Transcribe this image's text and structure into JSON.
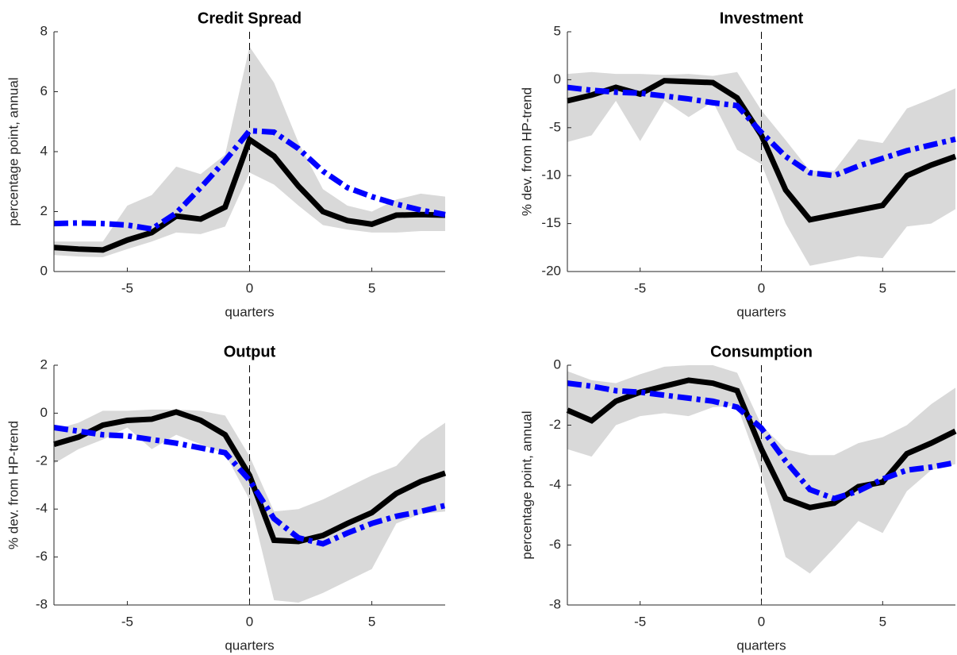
{
  "chart_data": [
    {
      "type": "line",
      "title": "Credit Spread",
      "xlabel": "quarters",
      "ylabel": "percentage point, annual",
      "x": [
        -8,
        -7,
        -6,
        -5,
        -4,
        -3,
        -2,
        -1,
        0,
        1,
        2,
        3,
        4,
        5,
        6,
        7,
        8
      ],
      "xlim": [
        -8,
        8
      ],
      "xticks": [
        -5,
        0,
        5
      ],
      "ylim": [
        0,
        8
      ],
      "yticks": [
        0,
        2,
        4,
        6,
        8
      ],
      "vline": 0,
      "band": {
        "color": "#d9d9d9",
        "lower": [
          0.55,
          0.5,
          0.48,
          0.75,
          1.0,
          1.3,
          1.25,
          1.5,
          3.3,
          2.9,
          2.2,
          1.55,
          1.4,
          1.3,
          1.3,
          1.35,
          1.35
        ],
        "upper": [
          1.0,
          1.0,
          1.0,
          2.2,
          2.55,
          3.5,
          3.25,
          3.9,
          7.5,
          6.3,
          4.3,
          2.75,
          2.2,
          2.0,
          2.4,
          2.6,
          2.5
        ]
      },
      "series": [
        {
          "color": "#000000",
          "line_style": "solid",
          "values": [
            0.8,
            0.75,
            0.72,
            1.05,
            1.3,
            1.85,
            1.75,
            2.15,
            4.4,
            3.85,
            2.85,
            2.0,
            1.7,
            1.58,
            1.88,
            1.9,
            1.88
          ]
        },
        {
          "color": "#0000ff",
          "line_style": "dashdot",
          "values": [
            1.6,
            1.62,
            1.6,
            1.55,
            1.42,
            1.95,
            2.8,
            3.7,
            4.7,
            4.65,
            4.1,
            3.35,
            2.8,
            2.5,
            2.25,
            2.05,
            1.9
          ]
        }
      ]
    },
    {
      "type": "line",
      "title": "Investment",
      "xlabel": "quarters",
      "ylabel": "% dev. from HP-trend",
      "x": [
        -8,
        -7,
        -6,
        -5,
        -4,
        -3,
        -2,
        -1,
        0,
        1,
        2,
        3,
        4,
        5,
        6,
        7,
        8
      ],
      "xlim": [
        -8,
        8
      ],
      "xticks": [
        -5,
        0,
        5
      ],
      "ylim": [
        -20,
        5
      ],
      "yticks": [
        -20,
        -15,
        -10,
        -5,
        0,
        5
      ],
      "vline": 0,
      "band": {
        "color": "#d9d9d9",
        "lower": [
          -6.5,
          -5.8,
          -2.2,
          -6.4,
          -2.2,
          -3.9,
          -2.3,
          -7.3,
          -8.8,
          -15,
          -19.4,
          -18.9,
          -18.4,
          -18.6,
          -15.3,
          -15,
          -13.5
        ],
        "upper": [
          0.6,
          0.8,
          0.6,
          0.6,
          0.5,
          0.6,
          0.4,
          0.8,
          -3.2,
          -6.3,
          -9.5,
          -9.5,
          -6.2,
          -6.6,
          -3,
          -2,
          -0.9
        ]
      },
      "series": [
        {
          "color": "#000000",
          "line_style": "solid",
          "values": [
            -2.2,
            -1.6,
            -0.8,
            -1.5,
            -0.1,
            -0.2,
            -0.3,
            -1.9,
            -5.8,
            -11.5,
            -14.6,
            -14.1,
            -13.6,
            -13.1,
            -10,
            -8.9,
            -8.0
          ]
        },
        {
          "color": "#0000ff",
          "line_style": "dashdot",
          "values": [
            -0.8,
            -1.1,
            -1.3,
            -1.4,
            -1.7,
            -2.0,
            -2.4,
            -2.7,
            -5.5,
            -8.0,
            -9.7,
            -10.0,
            -9.0,
            -8.2,
            -7.4,
            -6.8,
            -6.2
          ]
        }
      ]
    },
    {
      "type": "line",
      "title": "Output",
      "xlabel": "quarters",
      "ylabel": "% dev. from HP-trend",
      "x": [
        -8,
        -7,
        -6,
        -5,
        -4,
        -3,
        -2,
        -1,
        0,
        1,
        2,
        3,
        4,
        5,
        6,
        7,
        8
      ],
      "xlim": [
        -8,
        8
      ],
      "xticks": [
        -5,
        0,
        5
      ],
      "ylim": [
        -8,
        2
      ],
      "yticks": [
        -8,
        -6,
        -4,
        -2,
        0,
        2
      ],
      "vline": 0,
      "band": {
        "color": "#d9d9d9",
        "lower": [
          -2.1,
          -1.5,
          -1.1,
          -0.6,
          -1.5,
          -0.9,
          -1.3,
          -1.7,
          -3.6,
          -7.8,
          -7.9,
          -7.5,
          -7.0,
          -6.5,
          -4.6,
          -4.2,
          -4.1
        ],
        "upper": [
          -0.7,
          -0.4,
          0.1,
          0.1,
          0.15,
          0.15,
          0.1,
          -0.1,
          -1.8,
          -4.1,
          -4.0,
          -3.6,
          -3.1,
          -2.6,
          -2.2,
          -1.1,
          -0.4
        ]
      },
      "series": [
        {
          "color": "#000000",
          "line_style": "solid",
          "values": [
            -1.3,
            -1.0,
            -0.5,
            -0.3,
            -0.25,
            0.05,
            -0.3,
            -0.9,
            -2.6,
            -5.3,
            -5.35,
            -5.1,
            -4.6,
            -4.15,
            -3.35,
            -2.85,
            -2.5
          ]
        },
        {
          "color": "#0000ff",
          "line_style": "dashdot",
          "values": [
            -0.6,
            -0.75,
            -0.9,
            -0.95,
            -1.1,
            -1.25,
            -1.45,
            -1.65,
            -2.8,
            -4.4,
            -5.2,
            -5.45,
            -5.0,
            -4.6,
            -4.3,
            -4.1,
            -3.85
          ]
        }
      ]
    },
    {
      "type": "line",
      "title": "Consumption",
      "xlabel": "quarters",
      "ylabel": "percentage point, annual",
      "x": [
        -8,
        -7,
        -6,
        -5,
        -4,
        -3,
        -2,
        -1,
        0,
        1,
        2,
        3,
        4,
        5,
        6,
        7,
        8
      ],
      "xlim": [
        -8,
        8
      ],
      "xticks": [
        -5,
        0,
        5
      ],
      "ylim": [
        -8,
        0
      ],
      "yticks": [
        -8,
        -6,
        -4,
        -2,
        0
      ],
      "vline": 0,
      "band": {
        "color": "#d9d9d9",
        "lower": [
          -2.8,
          -3.05,
          -2.0,
          -1.7,
          -1.6,
          -1.7,
          -1.4,
          -1.35,
          -3.6,
          -6.4,
          -6.95,
          -6.1,
          -5.2,
          -5.6,
          -4.2,
          -3.5,
          -3.3
        ],
        "upper": [
          -0.2,
          -0.5,
          -0.6,
          -0.3,
          -0.05,
          0,
          0,
          -0.25,
          -2.0,
          -2.8,
          -3.0,
          -3.0,
          -2.6,
          -2.4,
          -2.0,
          -1.3,
          -0.75
        ]
      },
      "series": [
        {
          "color": "#000000",
          "line_style": "solid",
          "values": [
            -1.5,
            -1.85,
            -1.2,
            -0.9,
            -0.7,
            -0.5,
            -0.6,
            -0.85,
            -2.8,
            -4.45,
            -4.75,
            -4.6,
            -4.05,
            -3.9,
            -2.95,
            -2.6,
            -2.2
          ]
        },
        {
          "color": "#0000ff",
          "line_style": "dashdot",
          "values": [
            -0.6,
            -0.7,
            -0.85,
            -0.9,
            -1.0,
            -1.1,
            -1.2,
            -1.4,
            -2.1,
            -3.2,
            -4.15,
            -4.45,
            -4.2,
            -3.8,
            -3.5,
            -3.4,
            -3.25
          ]
        }
      ]
    }
  ]
}
